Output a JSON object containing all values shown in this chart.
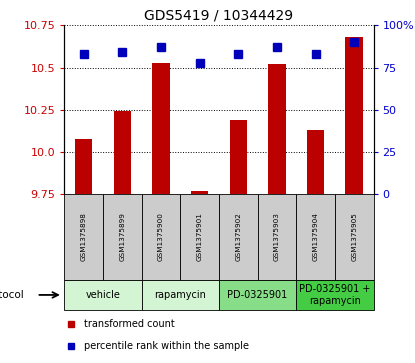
{
  "title": "GDS5419 / 10344429",
  "samples": [
    "GSM1375898",
    "GSM1375899",
    "GSM1375900",
    "GSM1375901",
    "GSM1375902",
    "GSM1375903",
    "GSM1375904",
    "GSM1375905"
  ],
  "transformed_counts": [
    10.08,
    10.24,
    10.53,
    9.77,
    10.19,
    10.52,
    10.13,
    10.68
  ],
  "percentile_ranks": [
    83,
    84,
    87,
    78,
    83,
    87,
    83,
    90
  ],
  "ylim_left": [
    9.75,
    10.75
  ],
  "ylim_right": [
    0,
    100
  ],
  "yticks_left": [
    9.75,
    10.0,
    10.25,
    10.5,
    10.75
  ],
  "yticks_right": [
    0,
    25,
    50,
    75,
    100
  ],
  "ytick_labels_right": [
    "0",
    "25",
    "50",
    "75",
    "100%"
  ],
  "bar_color": "#bb0000",
  "dot_color": "#0000bb",
  "bar_width": 0.45,
  "protocols": [
    {
      "label": "vehicle",
      "samples": [
        0,
        1
      ],
      "color": "#d4f5d4"
    },
    {
      "label": "rapamycin",
      "samples": [
        2,
        3
      ],
      "color": "#d4f5d4"
    },
    {
      "label": "PD-0325901",
      "samples": [
        4,
        5
      ],
      "color": "#88dd88"
    },
    {
      "label": "PD-0325901 +\nrapamycin",
      "samples": [
        6,
        7
      ],
      "color": "#44cc44"
    }
  ],
  "legend_items": [
    {
      "label": "transformed count",
      "color": "#bb0000"
    },
    {
      "label": "percentile rank within the sample",
      "color": "#0000bb"
    }
  ],
  "protocol_label": "protocol",
  "axis_color_left": "#cc0000",
  "axis_color_right": "#0000cc",
  "sample_box_color": "#cccccc",
  "grid_color": "black",
  "title_fontsize": 10,
  "tick_fontsize": 8,
  "sample_fontsize": 5.2,
  "proto_fontsize": 7.0,
  "legend_fontsize": 7.0
}
